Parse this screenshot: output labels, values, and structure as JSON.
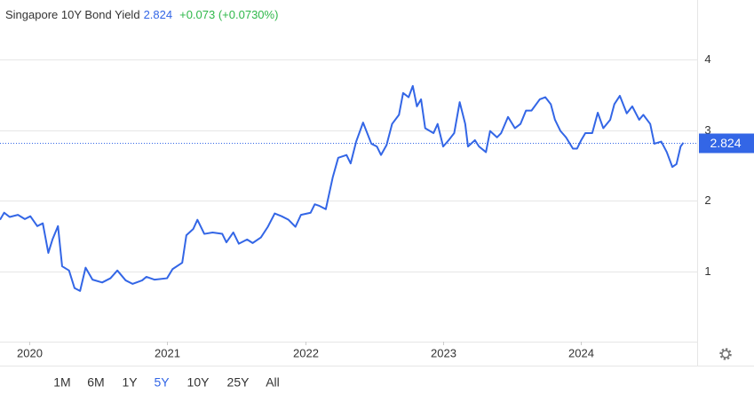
{
  "chart_data": {
    "type": "line",
    "title": "Singapore 10Y Bond Yield",
    "last_value": 2.824,
    "change_label": "+0.073 (+0.0730%)",
    "x": [
      2019.79,
      2019.82,
      2019.86,
      2019.92,
      2019.97,
      2020.01,
      2020.06,
      2020.1,
      2020.14,
      2020.17,
      2020.21,
      2020.24,
      2020.29,
      2020.33,
      2020.37,
      2020.41,
      2020.46,
      2020.53,
      2020.59,
      2020.64,
      2020.7,
      2020.75,
      2020.82,
      2020.85,
      2020.91,
      2021.0,
      2021.04,
      2021.11,
      2021.14,
      2021.19,
      2021.22,
      2021.27,
      2021.33,
      2021.4,
      2021.43,
      2021.48,
      2021.52,
      2021.58,
      2021.62,
      2021.68,
      2021.73,
      2021.78,
      2021.83,
      2021.88,
      2021.93,
      2021.97,
      2022.04,
      2022.07,
      2022.1,
      2022.15,
      2022.2,
      2022.24,
      2022.3,
      2022.33,
      2022.37,
      2022.42,
      2022.48,
      2022.52,
      2022.55,
      2022.59,
      2022.63,
      2022.68,
      2022.71,
      2022.75,
      2022.78,
      2022.81,
      2022.84,
      2022.87,
      2022.93,
      2022.96,
      2023.0,
      2023.04,
      2023.08,
      2023.12,
      2023.16,
      2023.18,
      2023.23,
      2023.26,
      2023.31,
      2023.34,
      2023.39,
      2023.42,
      2023.47,
      2023.52,
      2023.56,
      2023.6,
      2023.64,
      2023.7,
      2023.74,
      2023.78,
      2023.81,
      2023.85,
      2023.89,
      2023.94,
      2023.97,
      2024.0,
      2024.03,
      2024.08,
      2024.12,
      2024.16,
      2024.21,
      2024.24,
      2024.28,
      2024.33,
      2024.37,
      2024.42,
      2024.45,
      2024.5,
      2024.53,
      2024.58,
      2024.62,
      2024.66,
      2024.69,
      2024.72,
      2024.74
    ],
    "series": [
      {
        "name": "Singapore 10Y Bond Yield",
        "color": "#3366e6",
        "values": [
          1.73,
          1.83,
          1.77,
          1.8,
          1.74,
          1.78,
          1.64,
          1.68,
          1.26,
          1.45,
          1.64,
          1.07,
          1.01,
          0.76,
          0.72,
          1.05,
          0.88,
          0.84,
          0.9,
          1.01,
          0.87,
          0.82,
          0.87,
          0.92,
          0.88,
          0.9,
          1.03,
          1.12,
          1.51,
          1.6,
          1.73,
          1.53,
          1.55,
          1.53,
          1.41,
          1.55,
          1.39,
          1.45,
          1.4,
          1.48,
          1.63,
          1.82,
          1.78,
          1.73,
          1.63,
          1.8,
          1.83,
          1.95,
          1.93,
          1.88,
          2.33,
          2.61,
          2.65,
          2.53,
          2.84,
          3.11,
          2.81,
          2.77,
          2.65,
          2.79,
          3.09,
          3.22,
          3.53,
          3.47,
          3.63,
          3.34,
          3.44,
          3.03,
          2.96,
          3.09,
          2.77,
          2.86,
          2.96,
          3.4,
          3.09,
          2.77,
          2.86,
          2.77,
          2.69,
          2.99,
          2.9,
          2.96,
          3.19,
          3.03,
          3.09,
          3.28,
          3.28,
          3.44,
          3.47,
          3.37,
          3.15,
          2.99,
          2.9,
          2.74,
          2.74,
          2.86,
          2.96,
          2.96,
          3.25,
          3.03,
          3.15,
          3.37,
          3.49,
          3.24,
          3.34,
          3.15,
          3.22,
          3.09,
          2.81,
          2.84,
          2.69,
          2.48,
          2.52,
          2.77,
          2.824
        ]
      }
    ],
    "xlim": [
      2019.79,
      2024.84
    ],
    "xticks": [
      2020,
      2021,
      2022,
      2023,
      2024
    ],
    "ylim": [
      0,
      4.85
    ],
    "yticks": [
      1,
      2,
      3,
      4
    ],
    "grid": true
  },
  "toolbar": {
    "ranges": [
      "1M",
      "6M",
      "1Y",
      "5Y",
      "10Y",
      "25Y",
      "All"
    ],
    "selected": "5Y"
  }
}
